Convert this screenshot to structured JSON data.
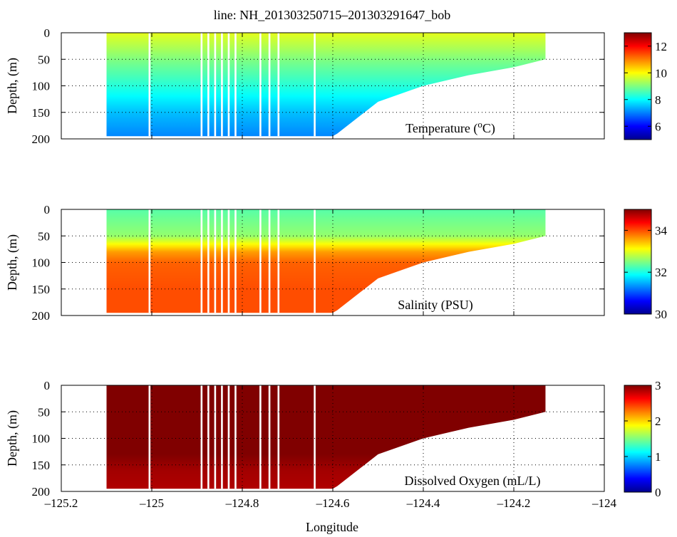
{
  "title": "line: NH_201303250715–201303291647_bob",
  "xlabel": "Longitude",
  "x_ticks": [
    "–125.2",
    "–125",
    "–124.8",
    "–124.6",
    "–124.4",
    "–124.2",
    "–124"
  ],
  "colormap": [
    "#00008f",
    "#0000ff",
    "#0080ff",
    "#00ffff",
    "#80ff80",
    "#ffff00",
    "#ff8000",
    "#ff0000",
    "#800000"
  ],
  "chart_data": [
    {
      "type": "heatmap",
      "name": "temperature",
      "label": "Temperature (°C)",
      "label_prefix": "Temperature (",
      "label_sup": "o",
      "label_suffix": "C)",
      "xlabel": "",
      "ylabel": "Depth, (m)",
      "xlim": [
        -125.2,
        -124.0
      ],
      "ylim": [
        200,
        0
      ],
      "x_tick_values": [
        -125.2,
        -125.0,
        -124.8,
        -124.6,
        -124.4,
        -124.2,
        -124.0
      ],
      "y_ticks": [
        "0",
        "50",
        "100",
        "150",
        "200"
      ],
      "y_tick_values": [
        0,
        50,
        100,
        150,
        200
      ],
      "clim": [
        5,
        13
      ],
      "colorbar_ticks": [
        "6",
        "8",
        "10",
        "12"
      ],
      "colorbar_tick_values": [
        6,
        8,
        10,
        12
      ],
      "grid": true,
      "section_lon_range": [
        -125.1,
        -124.13
      ],
      "bottom_depth_profile": {
        "lon": [
          -125.1,
          -124.6,
          -124.59,
          -124.5,
          -124.4,
          -124.3,
          -124.2,
          -124.13
        ],
        "depth": [
          195,
          195,
          190,
          130,
          100,
          80,
          65,
          50
        ]
      },
      "vertical_profile": {
        "depth": [
          0,
          50,
          100,
          150,
          200
        ],
        "value": [
          9.8,
          9.0,
          8.3,
          7.5,
          7.0
        ]
      },
      "gaps_lon": [
        -125.005,
        -124.89,
        -124.875,
        -124.86,
        -124.845,
        -124.83,
        -124.815,
        -124.76,
        -124.74,
        -124.72,
        -124.64
      ]
    },
    {
      "type": "heatmap",
      "name": "salinity",
      "label": "Salinity (PSU)",
      "xlabel": "",
      "ylabel": "Depth, (m)",
      "xlim": [
        -125.2,
        -124.0
      ],
      "ylim": [
        200,
        0
      ],
      "x_tick_values": [
        -125.2,
        -125.0,
        -124.8,
        -124.6,
        -124.4,
        -124.2,
        -124.0
      ],
      "y_ticks": [
        "0",
        "50",
        "100",
        "150",
        "200"
      ],
      "y_tick_values": [
        0,
        50,
        100,
        150,
        200
      ],
      "clim": [
        30,
        35
      ],
      "colorbar_ticks": [
        "30",
        "32",
        "34"
      ],
      "colorbar_tick_values": [
        30,
        32,
        34
      ],
      "grid": true,
      "section_lon_range": [
        -125.1,
        -124.13
      ],
      "bottom_depth_profile": {
        "lon": [
          -125.1,
          -124.6,
          -124.59,
          -124.5,
          -124.4,
          -124.3,
          -124.2,
          -124.13
        ],
        "depth": [
          195,
          195,
          190,
          130,
          100,
          80,
          65,
          50
        ]
      },
      "vertical_profile": {
        "depth": [
          0,
          50,
          80,
          100,
          150,
          200
        ],
        "value": [
          32.3,
          32.6,
          33.6,
          33.9,
          34.0,
          34.0
        ]
      },
      "gaps_lon": [
        -125.005,
        -124.89,
        -124.875,
        -124.86,
        -124.845,
        -124.83,
        -124.815,
        -124.76,
        -124.74,
        -124.72,
        -124.64
      ]
    },
    {
      "type": "heatmap",
      "name": "oxygen",
      "label": "Dissolved Oxygen (mL/L)",
      "xlabel": "Longitude",
      "ylabel": "Depth, (m)",
      "xlim": [
        -125.2,
        -124.0
      ],
      "ylim": [
        200,
        0
      ],
      "x_tick_values": [
        -125.2,
        -125.0,
        -124.8,
        -124.6,
        -124.4,
        -124.2,
        -124.0
      ],
      "y_ticks": [
        "0",
        "50",
        "100",
        "150",
        "200"
      ],
      "y_tick_values": [
        0,
        50,
        100,
        150,
        200
      ],
      "clim": [
        0,
        3
      ],
      "colorbar_ticks": [
        "0",
        "1",
        "2",
        "3"
      ],
      "colorbar_tick_values": [
        0,
        1,
        2,
        3
      ],
      "grid": true,
      "section_lon_range": [
        -125.1,
        -124.13
      ],
      "bottom_depth_profile": {
        "lon": [
          -125.1,
          -124.6,
          -124.59,
          -124.5,
          -124.4,
          -124.3,
          -124.2,
          -124.13
        ],
        "depth": [
          195,
          195,
          190,
          130,
          100,
          80,
          65,
          50
        ]
      },
      "vertical_profile": {
        "depth": [
          0,
          100,
          130,
          160,
          200
        ],
        "value": [
          3.0,
          3.0,
          3.0,
          2.9,
          2.85
        ]
      },
      "gaps_lon": [
        -125.005,
        -124.89,
        -124.875,
        -124.86,
        -124.845,
        -124.83,
        -124.815,
        -124.76,
        -124.74,
        -124.72,
        -124.64
      ]
    }
  ]
}
